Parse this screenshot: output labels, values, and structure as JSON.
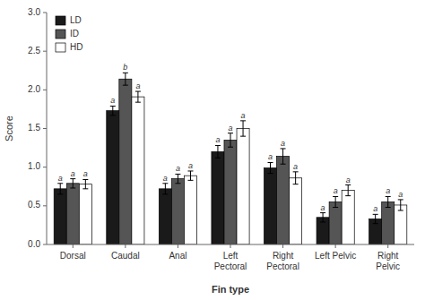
{
  "chart_data": {
    "type": "bar",
    "categories": [
      "Dorsal",
      "Caudal",
      "Anal",
      "Left\nPectoral",
      "Right\nPectoral",
      "Left Pelvic",
      "Right\nPelvic"
    ],
    "series": [
      {
        "name": "LD",
        "color": "#1a1a1a",
        "values": [
          0.72,
          1.73,
          0.72,
          1.2,
          0.99,
          0.35,
          0.33
        ],
        "errors": [
          0.07,
          0.06,
          0.07,
          0.08,
          0.07,
          0.06,
          0.06
        ],
        "sig_labels": [
          "a",
          "a",
          "a",
          "a",
          "a",
          "a",
          "a"
        ]
      },
      {
        "name": "ID",
        "color": "#555555",
        "values": [
          0.79,
          2.14,
          0.85,
          1.35,
          1.14,
          0.55,
          0.55
        ],
        "errors": [
          0.06,
          0.08,
          0.06,
          0.09,
          0.1,
          0.07,
          0.07
        ],
        "sig_labels": [
          "a",
          "b",
          "a",
          "a",
          "a",
          "a",
          "a"
        ]
      },
      {
        "name": "HD",
        "color": "#ffffff",
        "values": [
          0.78,
          1.91,
          0.89,
          1.5,
          0.86,
          0.7,
          0.51
        ],
        "errors": [
          0.06,
          0.07,
          0.06,
          0.1,
          0.08,
          0.07,
          0.07
        ],
        "sig_labels": [
          "a",
          "a",
          "a",
          "a",
          "a",
          "a",
          "a"
        ]
      }
    ],
    "xlabel": "Fin type",
    "ylabel": "Score",
    "ylim": [
      0,
      3.0
    ],
    "yticks": [
      {
        "value": 0,
        "label": "0.0"
      },
      0.5,
      {
        "value": 1.0,
        "label": "1.0"
      },
      1.5,
      {
        "value": 2.0,
        "label": "2.0"
      },
      2.5,
      {
        "value": 3.0,
        "label": "3.0"
      }
    ],
    "legend": "upper left",
    "grid": false
  }
}
